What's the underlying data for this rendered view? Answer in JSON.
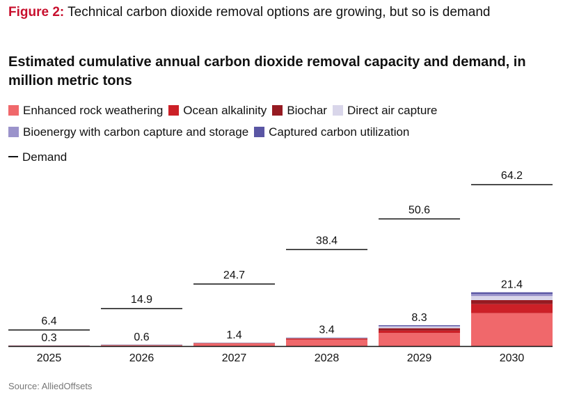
{
  "figure": {
    "label": "Figure 2:",
    "text": "Technical carbon dioxide removal options are growing, but so is demand"
  },
  "chart_data": {
    "type": "bar",
    "title": "Estimated cumulative annual carbon dioxide removal capacity and demand, in million metric tons",
    "categories": [
      "2025",
      "2026",
      "2027",
      "2028",
      "2029",
      "2030"
    ],
    "series": [
      {
        "name": "Enhanced rock weathering",
        "color": "#f0686b",
        "values": [
          0.1,
          0.2,
          1.0,
          2.6,
          5.2,
          13.1
        ]
      },
      {
        "name": "Ocean alkalinity",
        "color": "#cc2027",
        "values": [
          0.05,
          0.1,
          0.1,
          0.3,
          1.0,
          3.6
        ]
      },
      {
        "name": "Biochar",
        "color": "#961b22",
        "values": [
          0.05,
          0.1,
          0.1,
          0.2,
          0.9,
          1.6
        ]
      },
      {
        "name": "Direct air capture",
        "color": "#d9d6ea",
        "values": [
          0.05,
          0.1,
          0.1,
          0.1,
          0.6,
          1.6
        ]
      },
      {
        "name": "Bioenergy with carbon capture and storage",
        "color": "#9b93cb",
        "values": [
          0.025,
          0.05,
          0.05,
          0.1,
          0.3,
          0.8
        ]
      },
      {
        "name": "Captured carbon utilization",
        "color": "#5a56a4",
        "values": [
          0.025,
          0.05,
          0.05,
          0.1,
          0.3,
          0.7
        ]
      }
    ],
    "totals": [
      "0.3",
      "0.6",
      "1.4",
      "3.4",
      "8.3",
      "21.4"
    ],
    "demand": {
      "name": "Demand",
      "values": [
        6.4,
        14.9,
        24.7,
        38.4,
        50.6,
        64.2
      ],
      "labels": [
        "6.4",
        "14.9",
        "24.7",
        "38.4",
        "50.6",
        "64.2"
      ]
    },
    "ylim": [
      0,
      70
    ]
  },
  "source": "Source: AlliedOffsets"
}
